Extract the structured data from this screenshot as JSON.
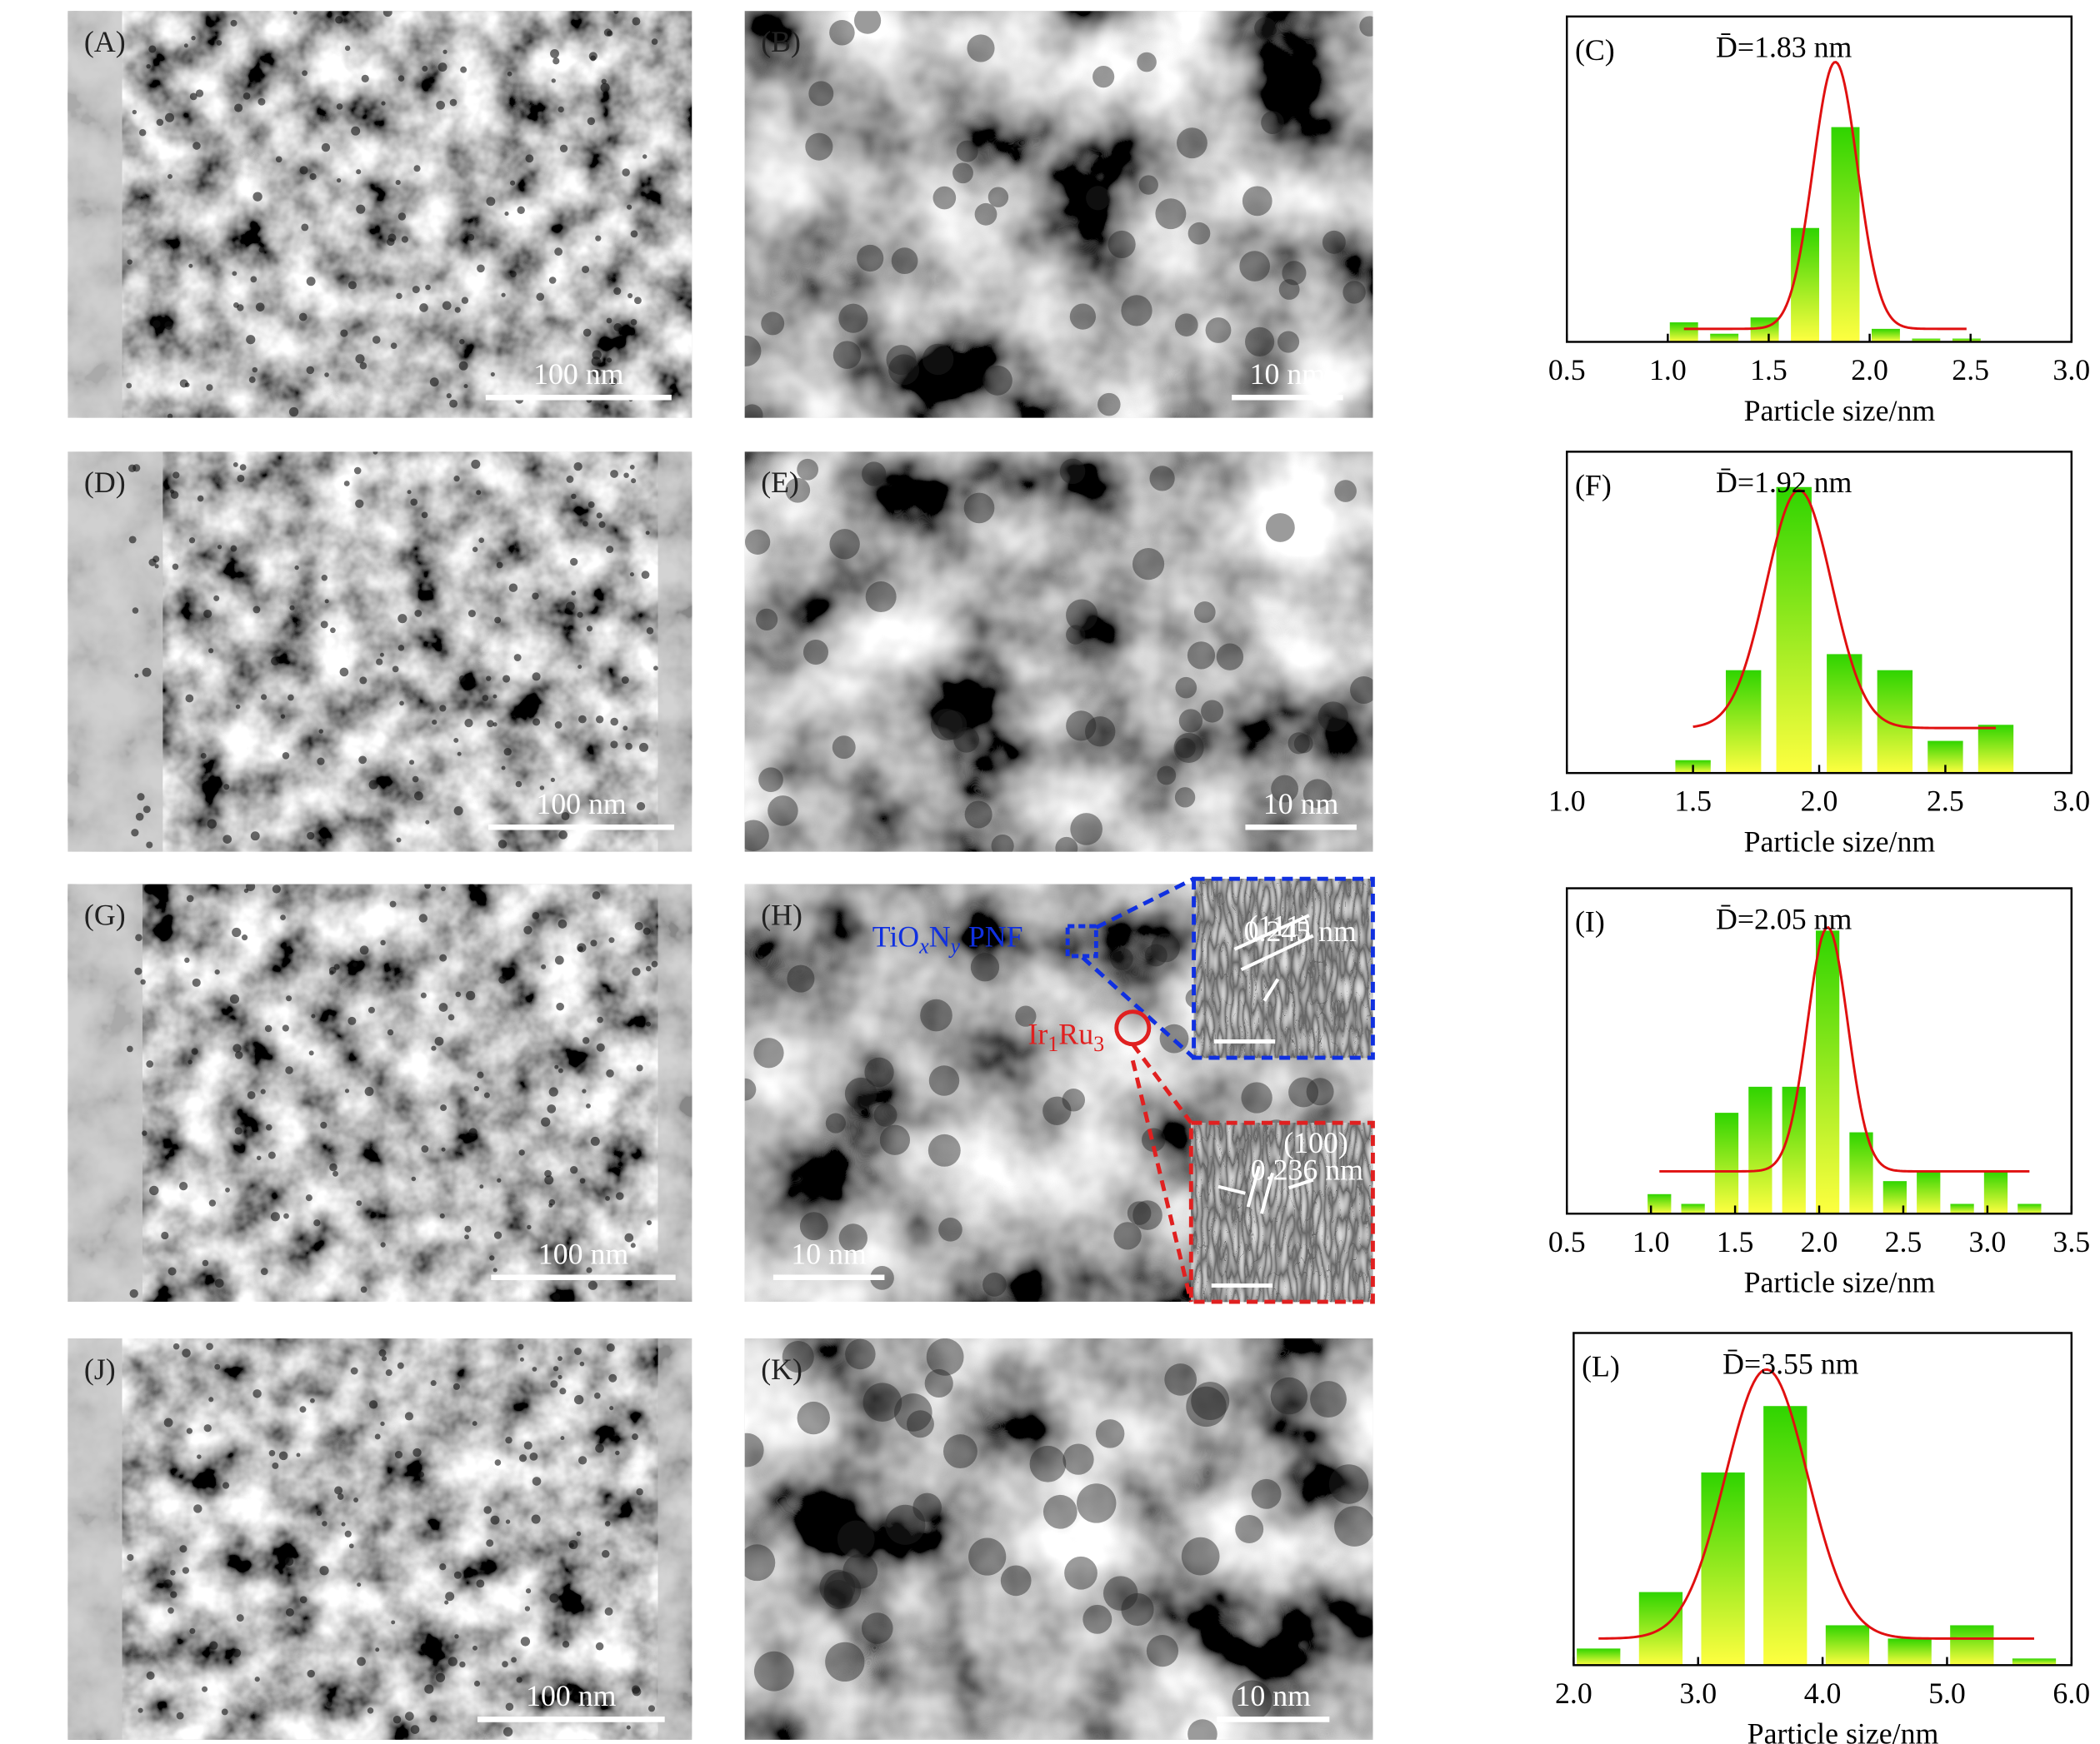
{
  "panels": [
    {
      "label": "(A)",
      "scale_bar": "100 nm"
    },
    {
      "label": "(B)",
      "scale_bar": "10 nm"
    },
    {
      "label": "(D)",
      "scale_bar": "100 nm"
    },
    {
      "label": "(E)",
      "scale_bar": "10 nm"
    },
    {
      "label": "(G)",
      "scale_bar": "100 nm"
    },
    {
      "label": "(H)",
      "scale_bar": "10 nm"
    },
    {
      "label": "(J)",
      "scale_bar": "100 nm"
    },
    {
      "label": "(K)",
      "scale_bar": "10 nm"
    }
  ],
  "annotations": {
    "support": [
      "TiO",
      "x",
      "N",
      "y",
      "PNF"
    ],
    "alloy": [
      "Ir",
      "1",
      "Ru",
      "3"
    ],
    "inset_top": [
      "(111)",
      "0.245 nm"
    ],
    "inset_bottom": [
      "(100)",
      "0.236 nm"
    ]
  },
  "chart_data": [
    {
      "type": "bar",
      "panel": "(C)",
      "title": "D̄=1.83 nm",
      "x_label": "Particle size/nm",
      "x": [
        1.08,
        1.28,
        1.48,
        1.68,
        1.88,
        2.08,
        2.28,
        2.48
      ],
      "values": [
        6,
        2.5,
        7.5,
        35,
        66,
        4,
        1,
        1
      ],
      "xlim": [
        0.5,
        3.0
      ],
      "xticks": [
        0.5,
        {
          "value": 1,
          "label": "1.0"
        },
        1.5,
        {
          "value": 2,
          "label": "2.0"
        },
        2.5,
        {
          "value": 3,
          "label": "3.0"
        }
      ],
      "ylim": [
        0,
        100
      ],
      "fit": {
        "center": 1.83,
        "sigma": 0.11,
        "amplitude": 82,
        "baseline": 4
      },
      "bar_colors": [
        "#2fd400",
        "#ffff40"
      ],
      "fit_color": "#e01010"
    },
    {
      "type": "bar",
      "panel": "(F)",
      "title": "D̄=1.92 nm",
      "x_label": "Particle size/nm",
      "x": [
        1.5,
        1.7,
        1.9,
        2.1,
        2.3,
        2.5,
        2.7
      ],
      "values": [
        4,
        32,
        89,
        37,
        32,
        10,
        15
      ],
      "xlim": [
        1.0,
        3.0
      ],
      "xticks": [
        {
          "value": 1,
          "label": "1.0"
        },
        1.5,
        {
          "value": 2,
          "label": "2.0"
        },
        2.5,
        {
          "value": 3,
          "label": "3.0"
        }
      ],
      "ylim": [
        0,
        100
      ],
      "fit": {
        "center": 1.92,
        "sigma": 0.13,
        "amplitude": 74,
        "baseline": 14
      },
      "bar_colors": [
        "#2fd400",
        "#ffff40"
      ],
      "fit_color": "#e01010"
    },
    {
      "type": "bar",
      "panel": "(I)",
      "title": "D̄=2.05 nm",
      "x_label": "Particle size/nm",
      "x": [
        1.05,
        1.25,
        1.45,
        1.65,
        1.85,
        2.05,
        2.25,
        2.45,
        2.65,
        2.85,
        3.05,
        3.25
      ],
      "values": [
        6,
        3,
        31,
        39,
        39,
        87,
        25,
        10,
        13,
        3,
        13,
        3
      ],
      "xlim": [
        0.5,
        3.5
      ],
      "xticks": [
        0.5,
        {
          "value": 1,
          "label": "1.0"
        },
        1.5,
        {
          "value": 2,
          "label": "2.0"
        },
        2.5,
        {
          "value": 3,
          "label": "3.0"
        },
        3.5
      ],
      "ylim": [
        0,
        100
      ],
      "fit": {
        "center": 2.05,
        "sigma": 0.12,
        "amplitude": 75,
        "baseline": 13
      },
      "bar_colors": [
        "#2fd400",
        "#ffff40"
      ],
      "fit_color": "#e01010"
    },
    {
      "type": "bar",
      "panel": "(L)",
      "title": "D̄=3.55 nm",
      "x_label": "Particle size/nm",
      "x": [
        2.2,
        2.7,
        3.2,
        3.7,
        4.2,
        4.7,
        5.2,
        5.7
      ],
      "values": [
        5,
        22,
        58,
        78,
        12,
        8,
        12,
        2
      ],
      "xlim": [
        2.0,
        6.0
      ],
      "xticks": [
        {
          "value": 2,
          "label": "2.0"
        },
        {
          "value": 3,
          "label": "3.0"
        },
        {
          "value": 4,
          "label": "4.0"
        },
        {
          "value": 5,
          "label": "5.0"
        },
        {
          "value": 6,
          "label": "6.0"
        }
      ],
      "ylim": [
        0,
        100
      ],
      "fit": {
        "center": 3.55,
        "sigma": 0.33,
        "amplitude": 81,
        "baseline": 8
      },
      "bar_colors": [
        "#2fd400",
        "#ffff40"
      ],
      "fit_color": "#e01010"
    }
  ]
}
